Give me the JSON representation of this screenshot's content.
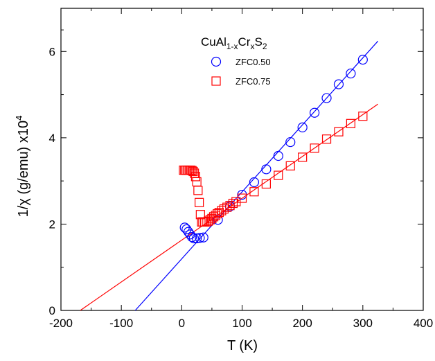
{
  "chart_data": {
    "type": "scatter",
    "xlabel": "T (K)",
    "ylabel": "1/χ (g/emu) x10",
    "ylabel_sup": "4",
    "legend_title": [
      "CuAl",
      "1-x",
      "Cr",
      "x",
      "S",
      "2"
    ],
    "xlim": [
      -200,
      400
    ],
    "ylim": [
      0,
      7
    ],
    "xticks": [
      -200,
      -100,
      0,
      100,
      200,
      300,
      400
    ],
    "yticks": [
      0,
      2,
      4,
      6
    ],
    "series": [
      {
        "name": "ZFC0.50",
        "color": "#0000ff",
        "marker": "circle",
        "x": [
          5,
          8,
          11,
          14,
          17,
          20,
          25,
          30,
          36,
          60,
          80,
          100,
          120,
          140,
          160,
          180,
          200,
          220,
          240,
          260,
          280,
          300
        ],
        "values": [
          1.92,
          1.88,
          1.82,
          1.76,
          1.7,
          1.67,
          1.67,
          1.68,
          1.69,
          2.1,
          2.41,
          2.68,
          2.97,
          3.27,
          3.58,
          3.9,
          4.24,
          4.58,
          4.92,
          5.24,
          5.49,
          5.81
        ]
      },
      {
        "name": "ZFC0.75",
        "color": "#ff0000",
        "marker": "square",
        "x": [
          3,
          5,
          7,
          9,
          11,
          13,
          15,
          17,
          19,
          21,
          23,
          25,
          27,
          29,
          31,
          33,
          35,
          38,
          41,
          44,
          47,
          50,
          53,
          56,
          59,
          62,
          66,
          70,
          75,
          80,
          85,
          90,
          100,
          120,
          140,
          160,
          180,
          200,
          220,
          240,
          260,
          280,
          300
        ],
        "values": [
          3.25,
          3.25,
          3.25,
          3.25,
          3.25,
          3.25,
          3.25,
          3.24,
          3.22,
          3.18,
          3.1,
          2.98,
          2.78,
          2.5,
          2.22,
          2.05,
          2.05,
          2.05,
          2.05,
          2.07,
          2.1,
          2.13,
          2.17,
          2.2,
          2.24,
          2.27,
          2.31,
          2.35,
          2.39,
          2.43,
          2.48,
          2.52,
          2.6,
          2.75,
          2.93,
          3.13,
          3.35,
          3.55,
          3.76,
          3.97,
          4.14,
          4.33,
          4.5
        ]
      }
    ],
    "fit_lines": [
      {
        "color": "#0000ff",
        "x": [
          -77,
          325
        ],
        "values": [
          0,
          6.24
        ]
      },
      {
        "color": "#ff0000",
        "x": [
          -168,
          325
        ],
        "values": [
          0,
          4.78
        ]
      }
    ]
  }
}
